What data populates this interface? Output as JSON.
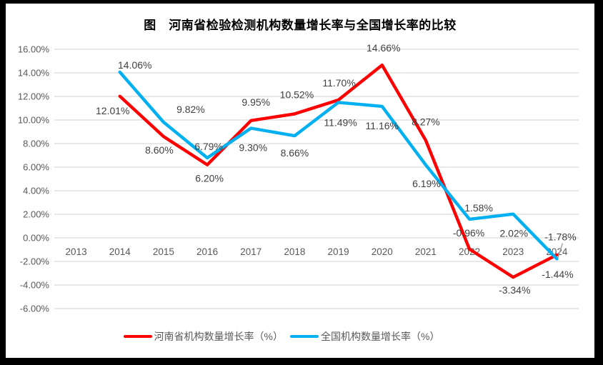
{
  "chart_data": {
    "type": "line",
    "title": "图　河南省检验检测机构数量增长率与全国增长率的比较",
    "categories": [
      "2013",
      "2014",
      "2015",
      "2016",
      "2017",
      "2018",
      "2019",
      "2020",
      "2021",
      "2022",
      "2023",
      "2024"
    ],
    "y_axis": {
      "min": -6,
      "max": 16,
      "step": 2,
      "tick_labels": [
        "16.00%",
        "14.00%",
        "12.00%",
        "10.00%",
        "8.00%",
        "6.00%",
        "4.00%",
        "2.00%",
        "0.00%",
        "-2.00%",
        "-4.00%",
        "-6.00%"
      ]
    },
    "grid": true,
    "legend_position": "bottom",
    "series": [
      {
        "name": "河南省机构数量增长率（%）",
        "color": "#FF0000",
        "values": [
          null,
          12.01,
          8.6,
          6.2,
          9.95,
          10.52,
          11.7,
          14.66,
          8.27,
          -0.96,
          -3.34,
          -1.44
        ],
        "point_labels": [
          null,
          "12.01%",
          "8.60%",
          "6.20%",
          "9.95%",
          "10.52%",
          "11.70%",
          "14.66%",
          "8.27%",
          "-0.96%",
          "-3.34%",
          "-1.44%"
        ],
        "label_offsets": [
          null,
          [
            -10,
            20
          ],
          [
            -6,
            19
          ],
          [
            3,
            19
          ],
          [
            7,
            -26
          ],
          [
            3,
            -27
          ],
          [
            1,
            -24
          ],
          [
            2,
            -24
          ],
          [
            0,
            -26
          ],
          [
            -1,
            -23
          ],
          [
            2,
            18
          ],
          [
            1,
            27
          ]
        ]
      },
      {
        "name": "全国机构数量增长率（%）",
        "color": "#00B0F0",
        "values": [
          null,
          14.06,
          9.82,
          6.79,
          9.3,
          8.66,
          11.49,
          11.16,
          6.19,
          1.58,
          2.02,
          -1.78
        ],
        "point_labels": [
          null,
          "14.06%",
          "9.82%",
          "6.79%",
          "9.30%",
          "8.66%",
          "11.49%",
          "11.16%",
          "6.19%",
          "1.58%",
          "2.02%",
          "-1.78%"
        ],
        "label_offsets": [
          null,
          [
            21,
            -10
          ],
          [
            38,
            -18
          ],
          [
            2,
            -16
          ],
          [
            3,
            27
          ],
          [
            0,
            24
          ],
          [
            3,
            28
          ],
          [
            0,
            27
          ],
          [
            1,
            26
          ],
          [
            13,
            -16
          ],
          [
            1,
            27
          ],
          [
            5,
            -31
          ]
        ],
        "callout_index": 11
      }
    ],
    "colors": {
      "grid": "#D9D9D9",
      "axis_text": "#595959",
      "label_text": "#404040",
      "leader": "#A6A6A6"
    }
  }
}
